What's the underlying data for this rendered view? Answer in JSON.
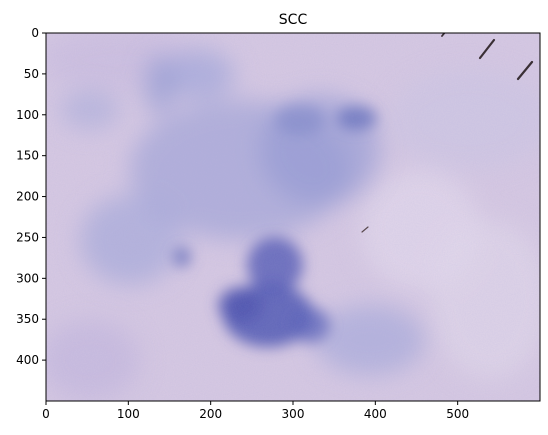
{
  "figure": {
    "title": "SCC",
    "image_description_icon": "stained-tissue-micrograph"
  },
  "chart_data": {
    "type": "image",
    "title": "SCC",
    "xlim": [
      0,
      600
    ],
    "ylim": [
      450,
      0
    ],
    "x_ticks": [
      0,
      100,
      200,
      300,
      400,
      500
    ],
    "y_ticks": [
      0,
      50,
      100,
      150,
      200,
      250,
      300,
      350,
      400
    ],
    "x_tick_labels": [
      "0",
      "100",
      "200",
      "300",
      "400",
      "500"
    ],
    "y_tick_labels": [
      "0",
      "50",
      "100",
      "150",
      "200",
      "250",
      "300",
      "350",
      "400"
    ],
    "grid": false,
    "colors": {
      "background": "#d6c6e2",
      "stain_dark": "#4a4fb0",
      "stain_mid": "#7f86cc",
      "stain_light": "#b9b6de",
      "artifact": "#3a2f35"
    }
  }
}
